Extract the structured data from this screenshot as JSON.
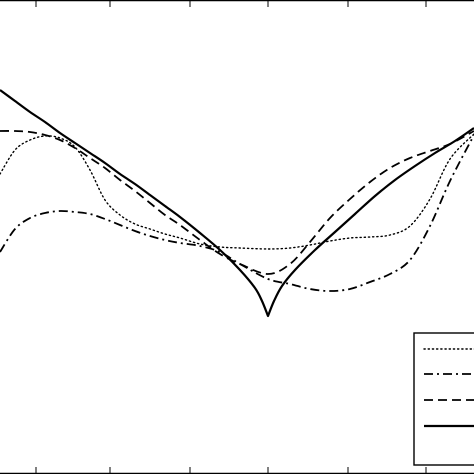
{
  "chart_data": {
    "type": "line",
    "title": "",
    "xlabel": "",
    "ylabel": "",
    "xlim": [
      0,
      474
    ],
    "ylim": [
      0,
      474
    ],
    "x_ticks_top": [
      36,
      110,
      190,
      268,
      348,
      426
    ],
    "x_ticks_bottom": [
      36,
      110,
      190,
      268,
      348,
      426
    ],
    "grid": false,
    "legend_position": "bottom-right",
    "series": [
      {
        "style": "dotted",
        "x": [
          0,
          15,
          30,
          45,
          60,
          75,
          90,
          105,
          120,
          135,
          150,
          165,
          180,
          200,
          220,
          240,
          268,
          290,
          310,
          330,
          350,
          370,
          390,
          410,
          430,
          450,
          474
        ],
        "y": [
          300,
          324,
          334,
          338,
          336,
          327,
          304,
          274,
          259,
          250,
          245,
          240,
          236,
          230,
          227,
          226,
          225,
          226,
          229,
          233,
          236,
          237,
          239,
          248,
          275,
          315,
          340
        ]
      },
      {
        "style": "dashdot",
        "x": [
          0,
          15,
          30,
          45,
          60,
          75,
          90,
          105,
          120,
          135,
          150,
          165,
          180,
          200,
          220,
          240,
          268,
          290,
          310,
          330,
          350,
          370,
          390,
          410,
          430,
          450,
          474
        ],
        "y": [
          222,
          245,
          256,
          261,
          263,
          262,
          260,
          255,
          249,
          243,
          238,
          234,
          231,
          228,
          222,
          210,
          195,
          190,
          185,
          183,
          185,
          192,
          200,
          214,
          248,
          293,
          339
        ]
      },
      {
        "style": "dashed",
        "x": [
          0,
          15,
          30,
          45,
          60,
          75,
          90,
          105,
          120,
          135,
          150,
          165,
          180,
          200,
          220,
          240,
          268,
          290,
          310,
          330,
          350,
          370,
          390,
          410,
          430,
          450,
          474
        ],
        "y": [
          343,
          343,
          342,
          339,
          334,
          326,
          316,
          306,
          294,
          283,
          271,
          259,
          249,
          234,
          220,
          210,
          200,
          210,
          232,
          256,
          275,
          292,
          306,
          316,
          323,
          330,
          343
        ]
      },
      {
        "style": "solid",
        "x": [
          0,
          15,
          30,
          45,
          60,
          75,
          90,
          105,
          120,
          135,
          150,
          165,
          180,
          200,
          220,
          240,
          255,
          262,
          268,
          274,
          282,
          295,
          315,
          335,
          355,
          375,
          395,
          415,
          435,
          455,
          474
        ],
        "y": [
          384,
          373,
          362,
          352,
          341,
          331,
          321,
          311,
          300,
          290,
          279,
          268,
          257,
          241,
          224,
          204,
          186,
          173,
          158,
          173,
          188,
          204,
          224,
          242,
          260,
          278,
          294,
          308,
          321,
          333,
          346
        ]
      }
    ]
  }
}
